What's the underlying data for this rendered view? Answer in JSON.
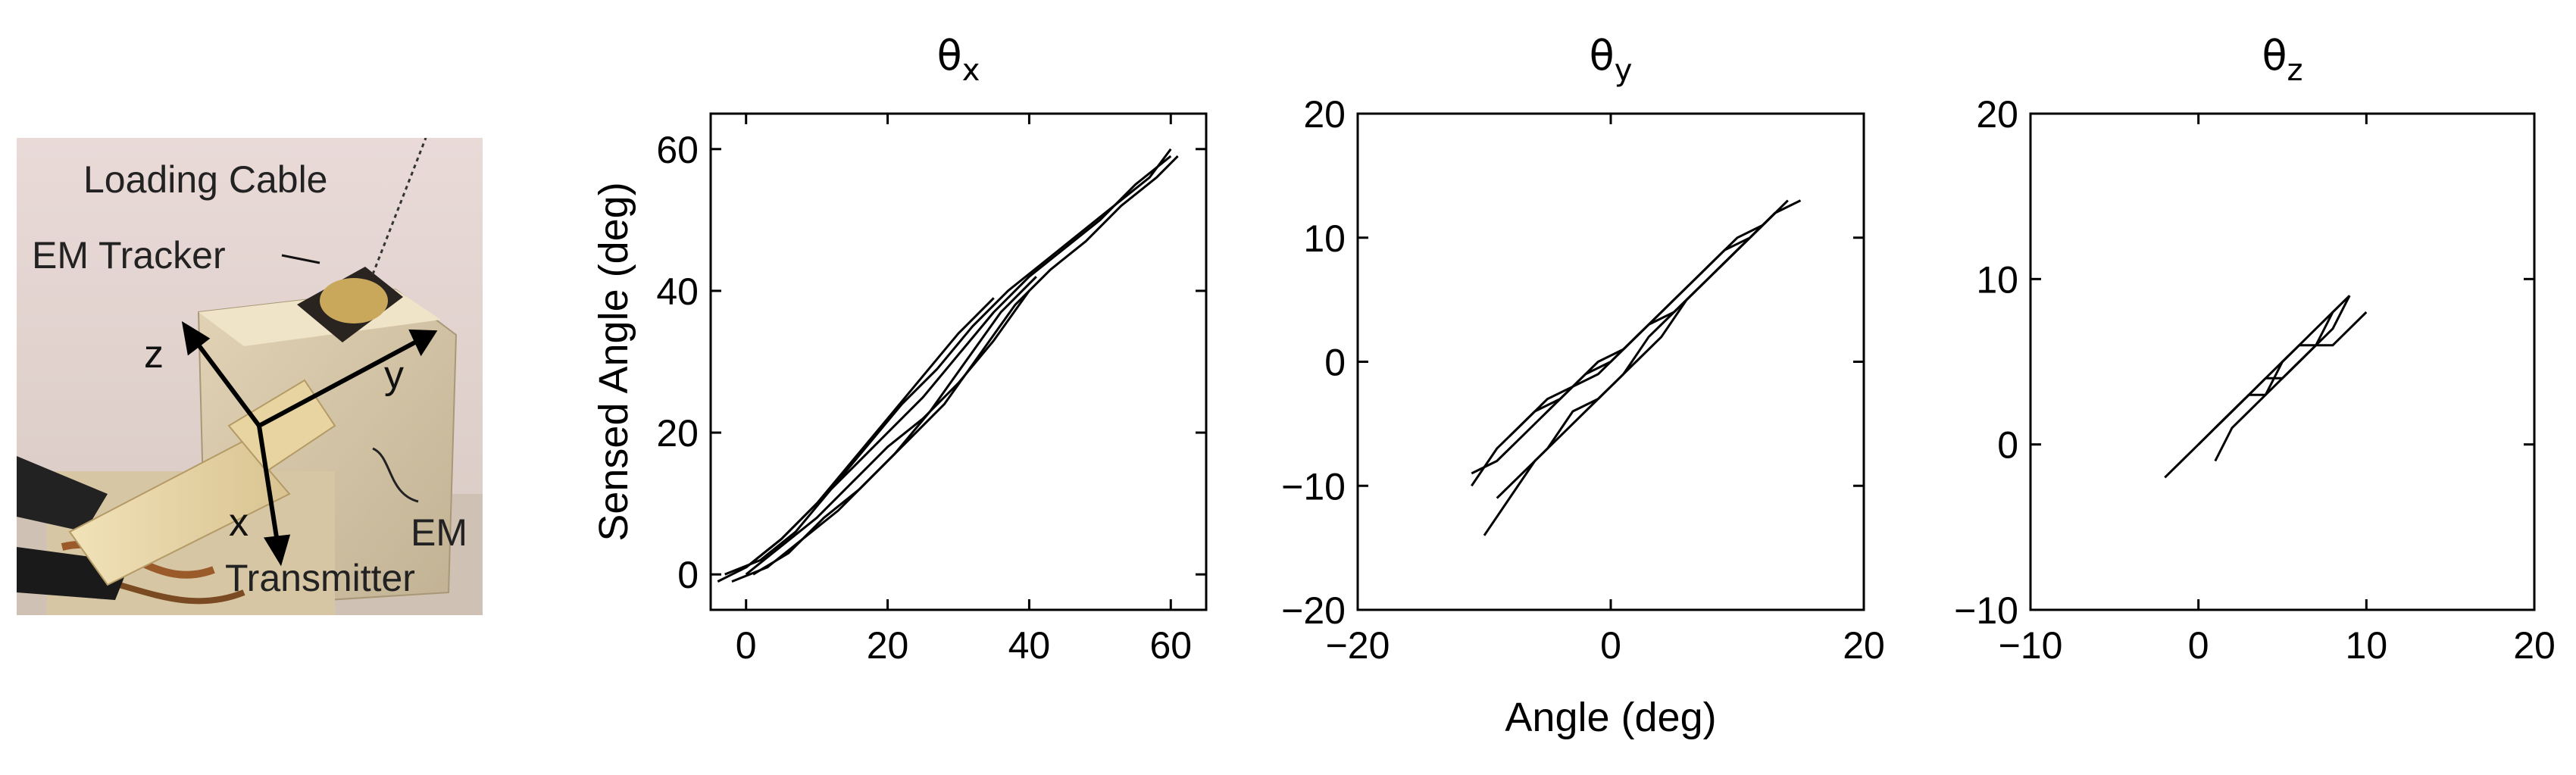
{
  "photo": {
    "labels": {
      "loading_cable": "Loading Cable",
      "em_tracker": "EM Tracker",
      "em": "EM",
      "transmitter": "Transmitter",
      "axis_z": "z",
      "axis_y": "y",
      "axis_x": "x"
    }
  },
  "chart_data": [
    {
      "type": "line",
      "title": "θx",
      "title_symbol": "θ",
      "title_sub": "x",
      "xlabel": "",
      "ylabel": "Sensed Angle (deg)",
      "xlim": [
        -5,
        65
      ],
      "ylim": [
        -5,
        65
      ],
      "xticks": [
        0,
        20,
        40,
        60
      ],
      "yticks": [
        0,
        20,
        40,
        60
      ],
      "grid": false,
      "series": [
        {
          "x": [
            -4,
            0,
            5,
            10,
            15,
            20,
            25,
            30,
            35,
            40,
            45,
            50,
            55,
            60
          ],
          "y": [
            -1,
            1,
            5,
            10,
            15,
            20,
            25,
            31,
            37,
            42,
            46,
            50,
            55,
            59
          ]
        },
        {
          "x": [
            -3,
            2,
            7,
            12,
            17,
            22,
            27,
            32,
            37,
            42,
            47,
            52,
            57,
            60
          ],
          "y": [
            0,
            2,
            6,
            12,
            18,
            24,
            29,
            35,
            40,
            44,
            48,
            52,
            56,
            60
          ]
        },
        {
          "x": [
            -2,
            3,
            8,
            13,
            18,
            23,
            28,
            33,
            38,
            43,
            48,
            53,
            58,
            61
          ],
          "y": [
            -1,
            1,
            5,
            9,
            14,
            19,
            24,
            31,
            38,
            43,
            47,
            52,
            56,
            59
          ]
        },
        {
          "x": [
            0,
            5,
            10,
            15,
            20,
            25,
            30,
            35,
            40
          ],
          "y": [
            0,
            4,
            8,
            13,
            18,
            22,
            27,
            33,
            40
          ]
        },
        {
          "x": [
            0,
            5,
            10,
            15,
            20,
            25,
            30,
            35
          ],
          "y": [
            1,
            5,
            10,
            16,
            22,
            28,
            34,
            39
          ]
        },
        {
          "x": [
            1,
            6,
            11,
            16,
            21,
            26,
            31,
            36,
            41
          ],
          "y": [
            0,
            3,
            8,
            12,
            17,
            23,
            30,
            37,
            42
          ]
        }
      ]
    },
    {
      "type": "line",
      "title": "θy",
      "title_symbol": "θ",
      "title_sub": "y",
      "xlabel": "Angle (deg)",
      "ylabel": "",
      "xlim": [
        -20,
        20
      ],
      "ylim": [
        -20,
        20
      ],
      "xticks": [
        -20,
        0,
        20
      ],
      "yticks": [
        -20,
        -10,
        0,
        10,
        20
      ],
      "grid": false,
      "series": [
        {
          "x": [
            -11,
            -9,
            -7,
            -5,
            -3,
            -1,
            1,
            3,
            5,
            7,
            9,
            11,
            13,
            15
          ],
          "y": [
            -9,
            -8,
            -6,
            -4,
            -2,
            -1,
            1,
            3,
            4,
            6,
            8,
            10,
            12,
            13
          ]
        },
        {
          "x": [
            -10,
            -8,
            -6,
            -4,
            -2,
            0,
            2,
            4,
            6,
            8,
            10,
            12,
            14
          ],
          "y": [
            -14,
            -11,
            -8,
            -6,
            -4,
            -2,
            0,
            2,
            5,
            7,
            9,
            11,
            13
          ]
        },
        {
          "x": [
            -11,
            -9,
            -7,
            -5,
            -3,
            -1,
            1,
            3,
            5,
            7,
            9,
            11,
            13
          ],
          "y": [
            -10,
            -7,
            -5,
            -3,
            -2,
            0,
            1,
            3,
            5,
            7,
            9,
            10,
            12
          ]
        },
        {
          "x": [
            -8,
            -6,
            -4,
            -2,
            0,
            2,
            4,
            6,
            8,
            10,
            12
          ],
          "y": [
            -6,
            -4,
            -3,
            -1,
            0,
            2,
            4,
            6,
            8,
            10,
            11
          ]
        },
        {
          "x": [
            -9,
            -7,
            -5,
            -3,
            -1,
            1,
            3,
            5,
            7,
            9,
            11,
            13
          ],
          "y": [
            -11,
            -9,
            -7,
            -4,
            -3,
            -1,
            2,
            4,
            6,
            8,
            10,
            12
          ]
        }
      ]
    },
    {
      "type": "line",
      "title": "θz",
      "title_symbol": "θ",
      "title_sub": "z",
      "xlabel": "",
      "ylabel": "",
      "xlim": [
        -10,
        20
      ],
      "ylim": [
        -10,
        20
      ],
      "xticks": [
        -10,
        0,
        10,
        20
      ],
      "yticks": [
        -10,
        0,
        10,
        20
      ],
      "grid": false,
      "series": [
        {
          "x": [
            -2,
            -1,
            0,
            1,
            2,
            3,
            4,
            5,
            6,
            7,
            8,
            9
          ],
          "y": [
            -2,
            -1,
            0,
            1,
            2,
            3,
            4,
            4,
            5,
            6,
            7,
            9
          ]
        },
        {
          "x": [
            1,
            2,
            3,
            4,
            5,
            6,
            7,
            8,
            9,
            10
          ],
          "y": [
            -1,
            1,
            2,
            3,
            4,
            5,
            6,
            6,
            7,
            8
          ]
        },
        {
          "x": [
            0,
            1,
            2,
            3,
            4,
            5,
            6,
            7,
            8
          ],
          "y": [
            0,
            1,
            2,
            3,
            4,
            5,
            6,
            7,
            8
          ]
        },
        {
          "x": [
            1,
            2,
            3,
            4,
            5,
            6,
            7,
            8,
            9
          ],
          "y": [
            1,
            2,
            3,
            3,
            5,
            6,
            6,
            8,
            9
          ]
        }
      ]
    }
  ]
}
